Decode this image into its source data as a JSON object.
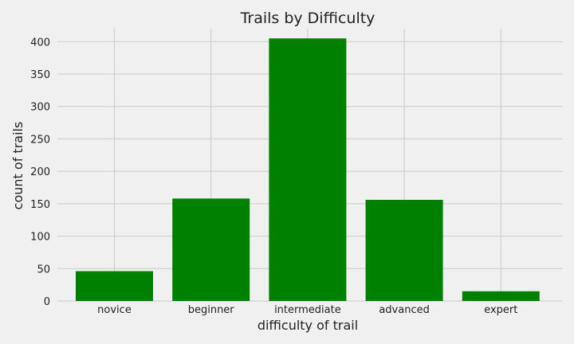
{
  "chart_data": {
    "type": "bar",
    "title": "Trails by Difficulty",
    "xlabel": "difficulty of trail",
    "ylabel": "count of trails",
    "categories": [
      "novice",
      "beginner",
      "intermediate",
      "advanced",
      "expert"
    ],
    "values": [
      46,
      158,
      405,
      156,
      15
    ],
    "ylim": [
      0,
      420
    ],
    "yticks": [
      0,
      50,
      100,
      150,
      200,
      250,
      300,
      350,
      400
    ],
    "grid": true,
    "bar_color": "#008000",
    "background_color": "#f0f0f0"
  }
}
